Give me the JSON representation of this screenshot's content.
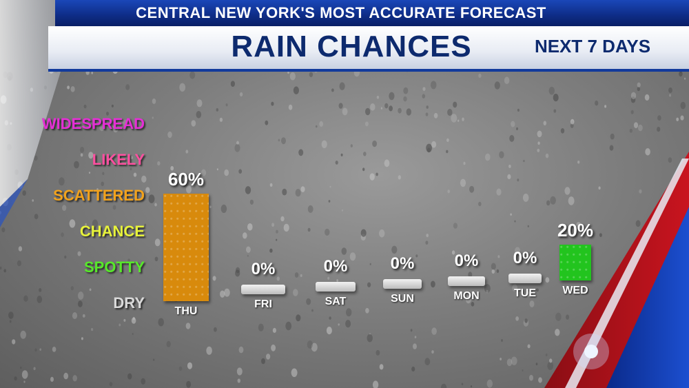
{
  "header": {
    "top": "CENTRAL NEW YORK'S MOST ACCURATE FORECAST",
    "title": "RAIN CHANCES",
    "subtitle": "NEXT 7 DAYS"
  },
  "chart_data": {
    "type": "bar",
    "categories": [
      "THU",
      "FRI",
      "SAT",
      "SUN",
      "MON",
      "TUE",
      "WED"
    ],
    "values": [
      60,
      0,
      0,
      0,
      0,
      0,
      20
    ],
    "value_labels": [
      "60%",
      "0%",
      "0%",
      "0%",
      "0%",
      "0%",
      "20%"
    ],
    "ylim": [
      0,
      100
    ],
    "y_levels": [
      {
        "label": "WIDESPREAD",
        "value": 100,
        "color": "#e62ed6"
      },
      {
        "label": "LIKELY",
        "value": 80,
        "color": "#ff4fa0"
      },
      {
        "label": "SCATTERED",
        "value": 60,
        "color": "#f2a21c"
      },
      {
        "label": "CHANCE",
        "value": 40,
        "color": "#e7f23b"
      },
      {
        "label": "SPOTTY",
        "value": 20,
        "color": "#57e82a"
      },
      {
        "label": "DRY",
        "value": 0,
        "color": "#d9d9d9"
      }
    ],
    "bar_colors": [
      "#d88a0c",
      "#dcdcdc",
      "#dcdcdc",
      "#dcdcdc",
      "#dcdcdc",
      "#dcdcdc",
      "#22c41e"
    ],
    "grid": false,
    "legend": "none"
  }
}
